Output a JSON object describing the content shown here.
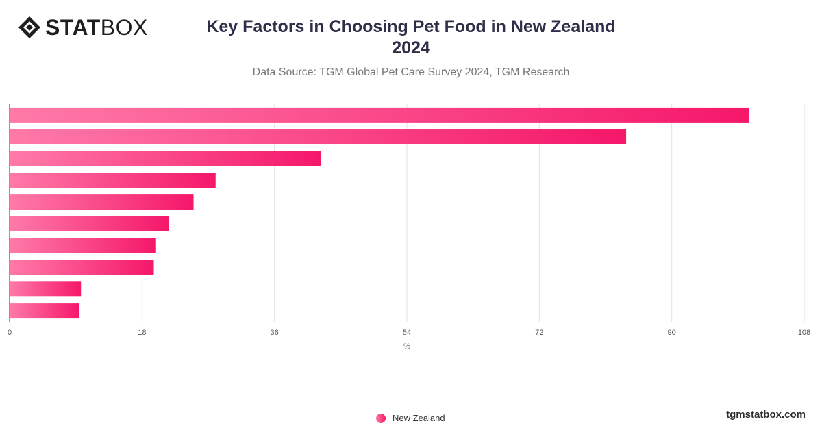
{
  "header": {
    "logo_bold": "STAT",
    "logo_light": "BOX",
    "title_line1": "Key Factors in Choosing Pet Food in New Zealand",
    "title_line2": "2024",
    "subtitle": "Data Source: TGM Global Pet Care Survey 2024, TGM Research"
  },
  "footer": {
    "site": "tgmstatbox.com"
  },
  "colors": {
    "bar_start": "#ff7aa8",
    "bar_end": "#f5176a",
    "grid": "#e2e2e2"
  },
  "chart_data": {
    "type": "bar",
    "orientation": "horizontal",
    "title": "Key Factors in Choosing Pet Food in New Zealand 2024",
    "subtitle": "Data Source: TGM Global Pet Care Survey 2024, TGM Research",
    "xlabel": "%",
    "ylabel": "",
    "xlim": [
      0,
      108
    ],
    "xticks": [
      0,
      18,
      36,
      54,
      72,
      90,
      108
    ],
    "grid": true,
    "legend_position": "bottom-center",
    "series": [
      {
        "name": "New Zealand",
        "values": [
          100.5,
          83.8,
          42.3,
          28.0,
          25.0,
          21.6,
          19.9,
          19.6,
          9.7,
          9.5
        ]
      }
    ]
  }
}
